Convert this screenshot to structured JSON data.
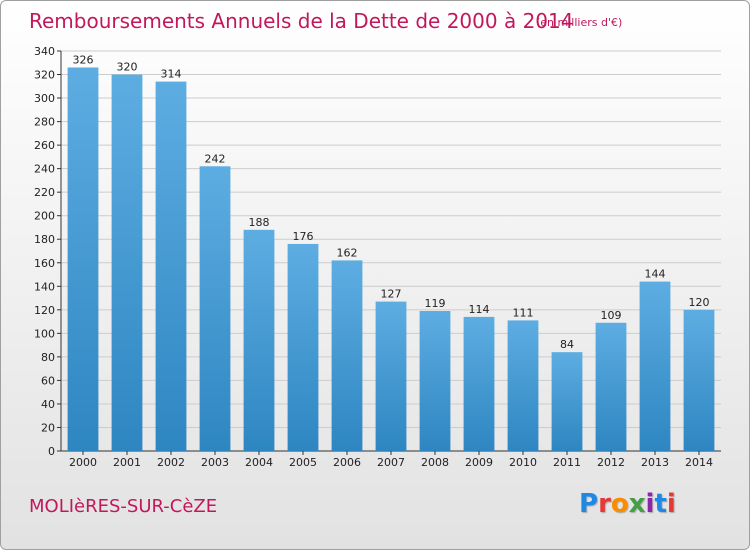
{
  "header": {
    "title": "Remboursements Annuels de la Dette de 2000 à 2014",
    "unit": "(en milliers d'€)"
  },
  "footer": {
    "town": "MOLIèRES-SUR-CèZE",
    "brand": "Proxiti",
    "brand_colors": [
      "#1e88e5",
      "#e53935",
      "#fb8c00",
      "#43a047",
      "#8e24aa",
      "#1e88e5",
      "#e53935"
    ]
  },
  "chart_data": {
    "type": "bar",
    "categories": [
      "2000",
      "2001",
      "2002",
      "2003",
      "2004",
      "2005",
      "2006",
      "2007",
      "2008",
      "2009",
      "2010",
      "2011",
      "2012",
      "2013",
      "2014"
    ],
    "values": [
      326,
      320,
      314,
      242,
      188,
      176,
      162,
      127,
      119,
      114,
      111,
      84,
      109,
      144,
      120
    ],
    "ylim": [
      0,
      340
    ],
    "yticks": [
      0,
      20,
      40,
      60,
      80,
      100,
      120,
      140,
      160,
      180,
      200,
      220,
      240,
      260,
      280,
      300,
      320,
      340
    ],
    "grid": true,
    "bar_color_top": "#5dade2",
    "bar_color_bottom": "#2e86c1",
    "xlabel": "",
    "ylabel": ""
  }
}
